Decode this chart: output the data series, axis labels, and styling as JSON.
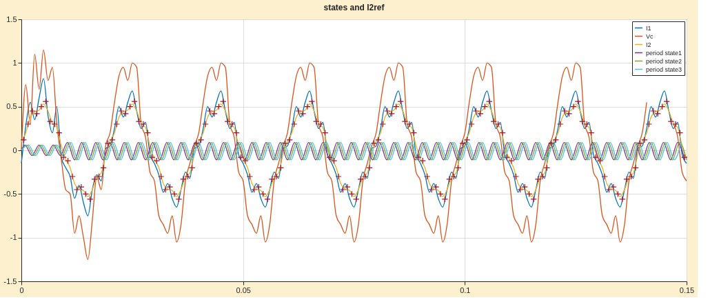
{
  "chart_data": {
    "type": "line",
    "title": "states and I2ref",
    "x": [
      0,
      0.001,
      0.002,
      0.003,
      0.004,
      0.005,
      0.006,
      0.007,
      0.008,
      0.009,
      0.01,
      0.011,
      0.012,
      0.013,
      0.014,
      0.015,
      0.016,
      0.017,
      0.018,
      0.019,
      0.02,
      0.021,
      0.022,
      0.023,
      0.024,
      0.025,
      0.026,
      0.027,
      0.028,
      0.029,
      0.03,
      0.031,
      0.032,
      0.033,
      0.034,
      0.035,
      0.036,
      0.037,
      0.038,
      0.039,
      0.04,
      0.041,
      0.042,
      0.043,
      0.044,
      0.045,
      0.046,
      0.047,
      0.048,
      0.049,
      0.05,
      0.051,
      0.052,
      0.053,
      0.054,
      0.055,
      0.056,
      0.057,
      0.058,
      0.059,
      0.06,
      0.061,
      0.062,
      0.063,
      0.064,
      0.065,
      0.066,
      0.067,
      0.068,
      0.069,
      0.07,
      0.071,
      0.072,
      0.073,
      0.074,
      0.075,
      0.076,
      0.077,
      0.078,
      0.079,
      0.08,
      0.081,
      0.082,
      0.083,
      0.084,
      0.085,
      0.086,
      0.087,
      0.088,
      0.089,
      0.09,
      0.091,
      0.092,
      0.093,
      0.094,
      0.095,
      0.096,
      0.097,
      0.098,
      0.099,
      0.1,
      0.101,
      0.102,
      0.103,
      0.104,
      0.105,
      0.106,
      0.107,
      0.108,
      0.109,
      0.11,
      0.111,
      0.112,
      0.113,
      0.114,
      0.115,
      0.116,
      0.117,
      0.118,
      0.119,
      0.12,
      0.121,
      0.122,
      0.123,
      0.124,
      0.125,
      0.126,
      0.127,
      0.128,
      0.129,
      0.13,
      0.131,
      0.132,
      0.133,
      0.134,
      0.135,
      0.136,
      0.137,
      0.138,
      0.139,
      0.14,
      0.141,
      0.142,
      0.143,
      0.144,
      0.145,
      0.146,
      0.147,
      0.148,
      0.149,
      0.15
    ],
    "series": [
      {
        "name": "I1",
        "color": "#0072bd",
        "values": [
          -0.15,
          0.28,
          0.55,
          0.35,
          0.6,
          0.82,
          0.4,
          0.2,
          0.5,
          -0.08,
          -0.2,
          -0.3,
          -0.55,
          -0.4,
          -0.6,
          -0.75,
          -0.45,
          -0.28,
          -0.35,
          0.02,
          0.05,
          0.25,
          0.5,
          0.38,
          0.55,
          0.68,
          0.45,
          0.25,
          0.32,
          -0.05,
          -0.15,
          -0.28,
          -0.48,
          -0.38,
          -0.55,
          -0.65,
          -0.45,
          -0.25,
          -0.32,
          0.02,
          0.05,
          0.25,
          0.5,
          0.38,
          0.55,
          0.68,
          0.45,
          0.25,
          0.32,
          -0.05,
          -0.15,
          -0.28,
          -0.48,
          -0.38,
          -0.55,
          -0.65,
          -0.45,
          -0.25,
          -0.32,
          0.02,
          0.05,
          0.25,
          0.5,
          0.38,
          0.55,
          0.68,
          0.45,
          0.25,
          0.32,
          -0.05,
          -0.15,
          -0.28,
          -0.48,
          -0.38,
          -0.55,
          -0.65,
          -0.45,
          -0.25,
          -0.32,
          0.02,
          0.05,
          0.25,
          0.5,
          0.38,
          0.55,
          0.68,
          0.45,
          0.25,
          0.32,
          -0.05,
          -0.15,
          -0.28,
          -0.48,
          -0.38,
          -0.55,
          -0.65,
          -0.45,
          -0.25,
          -0.32,
          0.02,
          0.05,
          0.25,
          0.5,
          0.38,
          0.55,
          0.68,
          0.45,
          0.25,
          0.32,
          -0.05,
          -0.15,
          -0.28,
          -0.48,
          -0.38,
          -0.55,
          -0.65,
          -0.45,
          -0.25,
          -0.32,
          0.02,
          0.05,
          0.25,
          0.5,
          0.38,
          0.55,
          0.68,
          0.45,
          0.25,
          0.32,
          -0.05,
          -0.15,
          -0.28,
          -0.48,
          -0.38,
          -0.55,
          -0.65,
          -0.45,
          -0.25,
          -0.32,
          0.02,
          0.05,
          0.25,
          0.5,
          0.38,
          0.55,
          0.68,
          0.45,
          0.25,
          0.32,
          -0.05,
          -0.15
        ]
      },
      {
        "name": "Vc",
        "color": "#d95319",
        "values": [
          0,
          0.75,
          0.3,
          1.1,
          0.7,
          1.15,
          0.8,
          0.95,
          0.3,
          -0.1,
          -0.45,
          -0.5,
          -0.95,
          -0.75,
          -1.0,
          -1.25,
          -0.8,
          -0.3,
          -0.45,
          0.05,
          0.2,
          0.55,
          0.85,
          0.95,
          0.8,
          1.0,
          0.95,
          0.3,
          0.15,
          -0.25,
          -0.35,
          -0.75,
          -0.85,
          -0.95,
          -0.75,
          -1.05,
          -0.85,
          -0.35,
          -0.15,
          0.05,
          0.2,
          0.55,
          0.85,
          0.95,
          0.8,
          1.0,
          0.95,
          0.3,
          0.15,
          -0.25,
          -0.35,
          -0.75,
          -0.85,
          -0.95,
          -0.75,
          -1.05,
          -0.85,
          -0.35,
          -0.15,
          0.05,
          0.2,
          0.55,
          0.85,
          0.95,
          0.8,
          1.0,
          0.95,
          0.3,
          0.15,
          -0.25,
          -0.35,
          -0.75,
          -0.85,
          -0.95,
          -0.75,
          -1.05,
          -0.85,
          -0.35,
          -0.15,
          0.05,
          0.2,
          0.55,
          0.85,
          0.95,
          0.8,
          1.0,
          0.95,
          0.3,
          0.15,
          -0.25,
          -0.35,
          -0.75,
          -0.85,
          -0.95,
          -0.75,
          -1.05,
          -0.85,
          -0.35,
          -0.15,
          0.05,
          0.2,
          0.55,
          0.85,
          0.95,
          0.8,
          1.0,
          0.95,
          0.3,
          0.15,
          -0.25,
          -0.35,
          -0.75,
          -0.85,
          -0.95,
          -0.75,
          -1.05,
          -0.85,
          -0.35,
          -0.15,
          0.05,
          0.2,
          0.55,
          0.85,
          0.95,
          0.8,
          1.0,
          0.95,
          0.3,
          0.15,
          -0.25,
          -0.35,
          -0.75,
          -0.85,
          -0.95,
          -0.75,
          -1.05,
          -0.85,
          -0.35,
          -0.15,
          0.05,
          0.2,
          0.55,
          null,
          null,
          null,
          null,
          null,
          0.3,
          0.15,
          -0.25,
          -0.35
        ]
      },
      {
        "name": "I2",
        "color": "#edb120",
        "values": [
          0.1,
          0.2,
          0.38,
          0.44,
          0.46,
          0.53,
          0.45,
          0.31,
          0.26,
          0.05,
          -0.1,
          -0.2,
          -0.38,
          -0.44,
          -0.46,
          -0.53,
          -0.45,
          -0.31,
          -0.26,
          -0.05,
          0.1,
          0.2,
          0.38,
          0.44,
          0.46,
          0.53,
          0.45,
          0.31,
          0.26,
          0.05,
          -0.1,
          -0.2,
          -0.38,
          -0.44,
          -0.46,
          -0.53,
          -0.45,
          -0.31,
          -0.26,
          -0.05,
          0.1,
          0.2,
          0.38,
          0.44,
          0.46,
          0.53,
          0.45,
          0.31,
          0.26,
          0.05,
          -0.1,
          -0.2,
          -0.38,
          -0.44,
          -0.46,
          -0.53,
          -0.45,
          -0.31,
          -0.26,
          -0.05,
          0.1,
          0.2,
          0.38,
          0.44,
          0.46,
          0.53,
          0.45,
          0.31,
          0.26,
          0.05,
          -0.1,
          -0.2,
          -0.38,
          -0.44,
          -0.46,
          -0.53,
          -0.45,
          -0.31,
          -0.26,
          -0.05,
          0.1,
          0.2,
          0.38,
          0.44,
          0.46,
          0.53,
          0.45,
          0.31,
          0.26,
          0.05,
          -0.1,
          -0.2,
          -0.38,
          -0.44,
          -0.46,
          -0.53,
          -0.45,
          -0.31,
          -0.26,
          -0.05,
          0.1,
          0.2,
          0.38,
          0.44,
          0.46,
          0.53,
          0.45,
          0.31,
          0.26,
          0.05,
          -0.1,
          -0.2,
          -0.38,
          -0.44,
          -0.46,
          -0.53,
          -0.45,
          -0.31,
          -0.26,
          -0.05,
          0.1,
          0.2,
          0.38,
          0.44,
          0.46,
          0.53,
          0.45,
          0.31,
          0.26,
          0.05,
          -0.1,
          -0.2,
          -0.38,
          -0.44,
          -0.46,
          -0.53,
          -0.45,
          -0.31,
          -0.26,
          -0.05,
          0.1,
          0.2,
          0.38,
          0.44,
          0.46,
          0.53,
          0.45,
          0.31,
          0.26,
          0.05,
          -0.1
        ]
      },
      {
        "name": "period state1",
        "color": "#7e2f8e",
        "x": [
          0,
          0.0008,
          0.0024,
          0.004,
          0.0056,
          0.0072,
          0.0088,
          0.0104,
          0.012,
          0.0136,
          0.0152,
          0.0168,
          0.0184,
          0.02,
          0.0216,
          0.0232,
          0.0248,
          0.0264,
          0.028,
          0.0296,
          0.0312,
          0.0328,
          0.0344,
          0.036,
          0.0376,
          0.0392,
          0.0408,
          0.0424,
          0.044,
          0.0456,
          0.0472,
          0.0488,
          0.0504,
          0.052,
          0.0536,
          0.0552,
          0.0568,
          0.0584,
          0.06,
          0.0616,
          0.0632,
          0.0648,
          0.0664,
          0.068,
          0.0696,
          0.0712,
          0.0728,
          0.0744,
          0.076,
          0.0776,
          0.0792,
          0.0808,
          0.0824,
          0.084,
          0.0856,
          0.0872,
          0.0888,
          0.0904,
          0.092,
          0.0936,
          0.0952,
          0.0968,
          0.0984,
          0.1,
          0.1016,
          0.1032,
          0.1048,
          0.1064,
          0.108,
          0.1096,
          0.1112,
          0.1128,
          0.1144,
          0.116,
          0.1176,
          0.1192,
          0.1208,
          0.1224,
          0.124,
          0.1256,
          0.1272,
          0.1288,
          0.1304,
          0.132,
          0.1336,
          0.1352,
          0.1368,
          0.1384,
          0.14,
          0.1416,
          0.1432,
          0.1448,
          0.1464,
          0.148,
          0.1496
        ],
        "values": [
          0,
          0.06,
          -0.06,
          0.06,
          -0.06,
          0.06,
          -0.06,
          0.09,
          -0.11,
          0.09,
          -0.11,
          0.09,
          -0.11,
          0.09,
          -0.11,
          0.09,
          -0.11,
          0.09,
          -0.11,
          0.09,
          -0.11,
          0.09,
          -0.11,
          0.09,
          -0.11,
          0.09,
          -0.11,
          0.09,
          -0.11,
          0.09,
          -0.11,
          0.09,
          -0.11,
          0.09,
          -0.11,
          0.09,
          -0.11,
          0.09,
          -0.11,
          0.09,
          -0.11,
          0.09,
          -0.11,
          0.09,
          -0.11,
          0.09,
          -0.11,
          0.09,
          -0.11,
          0.09,
          -0.11,
          0.09,
          -0.11,
          0.09,
          -0.11,
          0.09,
          -0.11,
          0.09,
          -0.11,
          0.09,
          -0.11,
          0.09,
          -0.11,
          0.09,
          -0.11,
          0.09,
          -0.11,
          0.09,
          -0.11,
          0.09,
          -0.11,
          0.09,
          -0.11,
          0.09,
          -0.11,
          0.09,
          -0.11,
          0.09,
          -0.11,
          0.09,
          -0.11,
          0.09,
          -0.11,
          0.09,
          -0.11,
          0.09,
          -0.11,
          0.09,
          -0.11,
          0.09,
          -0.11,
          0.09,
          -0.11,
          0.09,
          -0.11
        ]
      },
      {
        "name": "period state2",
        "color": "#77ac30",
        "x": [
          0,
          0.0012,
          0.0028,
          0.0044,
          0.006,
          0.0076,
          0.0092,
          0.0108,
          0.0124,
          0.014,
          0.0156,
          0.0172,
          0.0188,
          0.0204,
          0.022,
          0.0236,
          0.0252,
          0.0268,
          0.0284,
          0.03,
          0.0316,
          0.0332,
          0.0348,
          0.0364,
          0.038,
          0.0396,
          0.0412,
          0.0428,
          0.0444,
          0.046,
          0.0476,
          0.0492,
          0.0508,
          0.0524,
          0.054,
          0.0556,
          0.0572,
          0.0588,
          0.0604,
          0.062,
          0.0636,
          0.0652,
          0.0668,
          0.0684,
          0.07,
          0.0716,
          0.0732,
          0.0748,
          0.0764,
          0.078,
          0.0796,
          0.0812,
          0.0828,
          0.0844,
          0.086,
          0.0876,
          0.0892,
          0.0908,
          0.0924,
          0.094,
          0.0956,
          0.0972,
          0.0988,
          0.1004,
          0.102,
          0.1036,
          0.1052,
          0.1068,
          0.1084,
          0.11,
          0.1116,
          0.1132,
          0.1148,
          0.1164,
          0.118,
          0.1196,
          0.1212,
          0.1228,
          0.1244,
          0.126,
          0.1276,
          0.1292,
          0.1308,
          0.1324,
          0.134,
          0.1356,
          0.1372,
          0.1388,
          0.1404,
          0.142,
          0.1436,
          0.1452,
          0.1468,
          0.1484,
          0.15
        ],
        "values": [
          0,
          0.06,
          -0.06,
          0.06,
          -0.06,
          0.06,
          -0.06,
          0.09,
          -0.11,
          0.09,
          -0.11,
          0.09,
          -0.11,
          0.09,
          -0.11,
          0.09,
          -0.11,
          0.09,
          -0.11,
          0.09,
          -0.11,
          0.09,
          -0.11,
          0.09,
          -0.11,
          0.09,
          -0.11,
          0.09,
          -0.11,
          0.09,
          -0.11,
          0.09,
          -0.11,
          0.09,
          -0.11,
          0.09,
          -0.11,
          0.09,
          -0.11,
          0.09,
          -0.11,
          0.09,
          -0.11,
          0.09,
          -0.11,
          0.09,
          -0.11,
          0.09,
          -0.11,
          0.09,
          -0.11,
          0.09,
          -0.11,
          0.09,
          -0.11,
          0.09,
          -0.11,
          0.09,
          -0.11,
          0.09,
          -0.11,
          0.09,
          -0.11,
          0.09,
          -0.11,
          0.09,
          -0.11,
          0.09,
          -0.11,
          0.09,
          -0.11,
          0.09,
          -0.11,
          0.09,
          -0.11,
          0.09,
          -0.11,
          0.09,
          -0.11,
          0.09,
          -0.11,
          0.09,
          -0.11,
          0.09,
          -0.11,
          0.09,
          -0.11,
          0.09,
          -0.11,
          0.09,
          -0.11,
          0.09,
          -0.11,
          0.09,
          -0.11
        ]
      },
      {
        "name": "period state3",
        "color": "#4dbeee",
        "x": [
          0,
          0.0016,
          0.0032,
          0.0048,
          0.0064,
          0.008,
          0.0096,
          0.0112,
          0.0128,
          0.0144,
          0.016,
          0.0176,
          0.0192,
          0.0208,
          0.0224,
          0.024,
          0.0256,
          0.0272,
          0.0288,
          0.0304,
          0.032,
          0.0336,
          0.0352,
          0.0368,
          0.0384,
          0.04,
          0.0416,
          0.0432,
          0.0448,
          0.0464,
          0.048,
          0.0496,
          0.0512,
          0.0528,
          0.0544,
          0.056,
          0.0576,
          0.0592,
          0.0608,
          0.0624,
          0.064,
          0.0656,
          0.0672,
          0.0688,
          0.0704,
          0.072,
          0.0736,
          0.0752,
          0.0768,
          0.0784,
          0.08,
          0.0816,
          0.0832,
          0.0848,
          0.0864,
          0.088,
          0.0896,
          0.0912,
          0.0928,
          0.0944,
          0.096,
          0.0976,
          0.0992,
          0.1008,
          0.1024,
          0.104,
          0.1056,
          0.1072,
          0.1088,
          0.1104,
          0.112,
          0.1136,
          0.1152,
          0.1168,
          0.1184,
          0.12,
          0.1216,
          0.1232,
          0.1248,
          0.1264,
          0.128,
          0.1296,
          0.1312,
          0.1328,
          0.1344,
          0.136,
          0.1376,
          0.1392,
          0.1408,
          0.1424,
          0.144,
          0.1456,
          0.1472,
          0.1488
        ],
        "values": [
          0,
          0.06,
          -0.06,
          0.06,
          -0.06,
          0.06,
          -0.06,
          0.09,
          -0.11,
          0.09,
          -0.11,
          0.09,
          -0.11,
          0.09,
          -0.11,
          0.09,
          -0.11,
          0.09,
          -0.11,
          0.09,
          -0.11,
          0.09,
          -0.11,
          0.09,
          -0.11,
          0.09,
          -0.11,
          0.09,
          -0.11,
          0.09,
          -0.11,
          0.09,
          -0.11,
          0.09,
          -0.11,
          0.09,
          -0.11,
          0.09,
          -0.11,
          0.09,
          -0.11,
          0.09,
          -0.11,
          0.09,
          -0.11,
          0.09,
          -0.11,
          0.09,
          -0.11,
          0.09,
          -0.11,
          0.09,
          -0.11,
          0.09,
          -0.11,
          0.09,
          -0.11,
          0.09,
          -0.11,
          0.09,
          -0.11,
          0.09,
          -0.11,
          0.09,
          -0.11,
          0.09,
          -0.11,
          0.09,
          -0.11,
          0.09,
          -0.11,
          0.09,
          -0.11,
          0.09,
          -0.11,
          0.09,
          -0.11,
          0.09,
          -0.11,
          0.09,
          -0.11,
          0.09,
          -0.11,
          0.09,
          -0.11,
          0.09,
          -0.11,
          0.09,
          -0.11,
          0.09,
          -0.11,
          0.09,
          -0.11,
          0.09
        ]
      },
      {
        "type": "scatter",
        "marker": "cross",
        "color": "#a2142f",
        "x": [
          0.0005,
          0.0015,
          0.0025,
          0.0035,
          0.0045,
          0.0055,
          0.0065,
          0.0075,
          0.0085,
          0.0095,
          0.0105,
          0.0115,
          0.0125,
          0.0135,
          0.0145,
          0.0155,
          0.0165,
          0.0175,
          0.0185,
          0.0195,
          0.0205,
          0.0215,
          0.0225,
          0.0235,
          0.0245,
          0.0255,
          0.0265,
          0.0275,
          0.0285,
          0.0295,
          0.0305,
          0.0315,
          0.0325,
          0.0335,
          0.0345,
          0.0355,
          0.0365,
          0.0375,
          0.0385,
          0.0395,
          0.0405,
          0.0415,
          0.0425,
          0.0435,
          0.0445,
          0.0455,
          0.0465,
          0.0475,
          0.0485,
          0.0495,
          0.0505,
          0.0515,
          0.0525,
          0.0535,
          0.0545,
          0.0555,
          0.0565,
          0.0575,
          0.0585,
          0.0595,
          0.0605,
          0.0615,
          0.0625,
          0.0635,
          0.0645,
          0.0655,
          0.0665,
          0.0675,
          0.0685,
          0.0695,
          0.0705,
          0.0715,
          0.0725,
          0.0735,
          0.0745,
          0.0755,
          0.0765,
          0.0775,
          0.0785,
          0.0795,
          0.0805,
          0.0815,
          0.0825,
          0.0835,
          0.0845,
          0.0855,
          0.0865,
          0.0875,
          0.0885,
          0.0895,
          0.0905,
          0.0915,
          0.0925,
          0.0935,
          0.0945,
          0.0955,
          0.0965,
          0.0975,
          0.0985,
          0.0995,
          0.1005,
          0.1015,
          0.1025,
          0.1035,
          0.1045,
          0.1055,
          0.1065,
          0.1075,
          0.1085,
          0.1095,
          0.1105,
          0.1115,
          0.1125,
          0.1135,
          0.1145,
          0.1155,
          0.1165,
          0.1175,
          0.1185,
          0.1195,
          0.1205,
          0.1215,
          0.1225,
          0.1235,
          0.1245,
          0.1255,
          0.1265,
          0.1275,
          0.1285,
          0.1295,
          0.1305,
          0.1315,
          0.1325,
          0.1335,
          0.1345,
          0.1355,
          0.1365,
          0.1375,
          0.1385,
          0.1395,
          0.1405,
          0.1415,
          0.1425,
          0.1435,
          0.1445,
          0.1455,
          0.1465,
          0.1475,
          0.1485,
          0.1495
        ],
        "values": [
          0.12,
          0.3,
          0.45,
          0.42,
          0.5,
          0.56,
          0.33,
          0.3,
          0.2,
          -0.08,
          -0.12,
          -0.3,
          -0.45,
          -0.42,
          -0.5,
          -0.56,
          -0.33,
          -0.3,
          -0.2,
          0.08,
          0.12,
          0.3,
          0.45,
          0.42,
          0.5,
          0.56,
          0.33,
          0.3,
          0.2,
          -0.08,
          -0.12,
          -0.3,
          -0.45,
          -0.42,
          -0.5,
          -0.56,
          -0.33,
          -0.3,
          -0.2,
          0.08,
          0.12,
          0.3,
          0.45,
          0.42,
          0.5,
          0.56,
          0.33,
          0.3,
          0.2,
          -0.08,
          -0.12,
          -0.3,
          -0.45,
          -0.42,
          -0.5,
          -0.56,
          -0.33,
          -0.3,
          -0.2,
          0.08,
          0.12,
          0.3,
          0.45,
          0.42,
          0.5,
          0.56,
          0.33,
          0.3,
          0.2,
          -0.08,
          -0.12,
          -0.3,
          -0.45,
          -0.42,
          -0.5,
          -0.56,
          -0.33,
          -0.3,
          -0.2,
          0.08,
          0.12,
          0.3,
          0.45,
          0.42,
          0.5,
          0.56,
          0.33,
          0.3,
          0.2,
          -0.08,
          -0.12,
          -0.3,
          -0.45,
          -0.42,
          -0.5,
          -0.56,
          -0.33,
          -0.3,
          -0.2,
          0.08,
          0.12,
          0.3,
          0.45,
          0.42,
          0.5,
          0.56,
          0.33,
          0.3,
          0.2,
          -0.08,
          -0.12,
          -0.3,
          -0.45,
          -0.42,
          -0.5,
          -0.56,
          -0.33,
          -0.3,
          -0.2,
          0.08,
          0.12,
          0.3,
          0.45,
          0.42,
          0.5,
          0.56,
          0.33,
          0.3,
          0.2,
          -0.08,
          -0.12,
          -0.3,
          -0.45,
          -0.42,
          -0.5,
          -0.56,
          -0.33,
          -0.3,
          -0.2,
          0.08,
          0.12,
          0.3,
          0.45,
          0.42,
          0.5,
          0.56,
          0.33,
          0.3,
          0.2,
          -0.08
        ]
      }
    ],
    "xlim": [
      0,
      0.15
    ],
    "xticks": [
      0,
      0.05,
      0.1,
      0.15
    ],
    "ylim": [
      -1.5,
      1.5
    ],
    "yticks": [
      -1.5,
      -1,
      -0.5,
      0,
      0.5,
      1,
      1.5
    ],
    "grid": true,
    "legend": "top right",
    "marker": "none",
    "line_style": "solid"
  }
}
